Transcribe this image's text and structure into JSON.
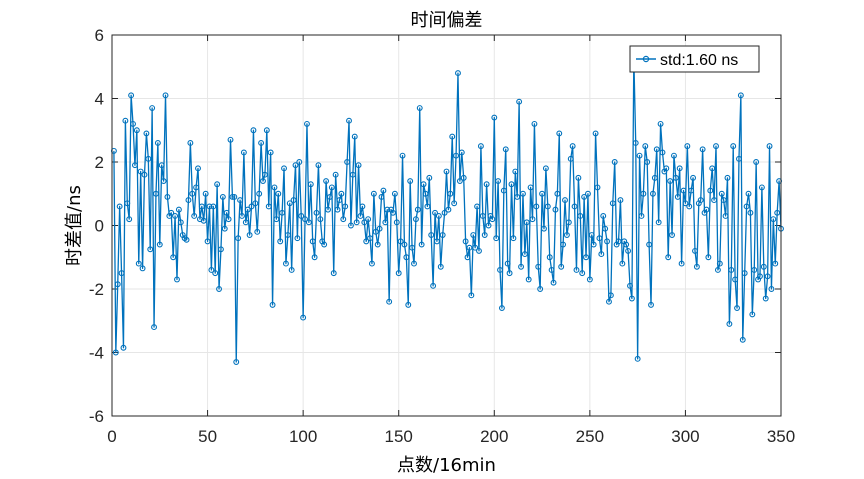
{
  "chart_data": {
    "type": "line",
    "title": "时间偏差",
    "xlabel": "点数/16min",
    "ylabel": "时差值/ns",
    "xlim": [
      0,
      350
    ],
    "ylim": [
      -6,
      6
    ],
    "xticks": [
      0,
      50,
      100,
      150,
      200,
      250,
      300,
      350
    ],
    "yticks": [
      -6,
      -4,
      -2,
      0,
      2,
      4,
      6
    ],
    "grid": true,
    "legend_position": "top-right",
    "series": [
      {
        "name": "std:1.60 ns",
        "color": "#0072BD",
        "marker": "circle",
        "values": [
          2.35,
          -4.0,
          -1.85,
          0.6,
          -1.5,
          -3.85,
          3.3,
          0.7,
          0.2,
          4.1,
          3.2,
          1.9,
          3.0,
          -1.2,
          1.7,
          -1.35,
          1.6,
          2.9,
          2.1,
          -0.75,
          3.7,
          -3.2,
          1.0,
          2.6,
          -0.6,
          1.9,
          1.4,
          4.1,
          0.9,
          0.3,
          0.4,
          -1.0,
          0.3,
          -1.7,
          0.5,
          0.1,
          -0.3,
          -0.4,
          -0.45,
          0.8,
          2.6,
          1.0,
          0.3,
          1.2,
          1.8,
          0.2,
          0.6,
          0.15,
          1.0,
          -0.5,
          0.6,
          -1.4,
          0.6,
          -1.5,
          1.3,
          -2.0,
          -0.75,
          0.9,
          -0.1,
          0.4,
          0.2,
          2.7,
          0.9,
          0.9,
          -4.3,
          -0.4,
          0.8,
          0.3,
          2.3,
          0.1,
          0.5,
          -0.3,
          0.6,
          3.0,
          0.7,
          -0.2,
          1.0,
          2.6,
          1.4,
          1.6,
          3.0,
          0.6,
          2.3,
          -2.5,
          1.2,
          0.2,
          1.0,
          -0.5,
          0.4,
          1.8,
          -1.2,
          -0.3,
          0.7,
          -1.4,
          0.8,
          1.9,
          -0.4,
          2.0,
          0.3,
          -2.9,
          0.2,
          3.2,
          0.1,
          1.3,
          -0.5,
          -1.0,
          0.4,
          1.9,
          0.2,
          -0.5,
          -0.6,
          1.4,
          0.5,
          0.9,
          1.2,
          -1.5,
          1.6,
          0.5,
          0.8,
          1.0,
          0.2,
          0.6,
          2.0,
          3.3,
          0.0,
          1.6,
          2.8,
          0.1,
          1.9,
          0.3,
          0.6,
          0.1,
          -0.5,
          0.2,
          -0.4,
          -1.2,
          1.0,
          -0.2,
          -0.6,
          -0.1,
          0.9,
          1.1,
          0.1,
          0.5,
          -2.4,
          0.5,
          0.4,
          1.0,
          0.1,
          -1.5,
          -0.5,
          2.2,
          -0.6,
          -1.0,
          -2.5,
          1.4,
          -0.7,
          -1.2,
          0.2,
          0.5,
          3.7,
          -0.6,
          1.3,
          1.0,
          0.6,
          1.5,
          -0.3,
          -1.9,
          0.4,
          -0.5,
          0.3,
          -1.3,
          -0.3,
          0.4,
          1.7,
          0.5,
          1.0,
          2.8,
          0.7,
          2.2,
          4.8,
          1.4,
          2.3,
          1.5,
          -0.5,
          -1.0,
          -0.7,
          -2.2,
          -0.3,
          -0.7,
          0.6,
          -0.8,
          2.5,
          0.3,
          -0.3,
          1.3,
          0.0,
          0.3,
          0.2,
          3.4,
          -0.4,
          1.4,
          -1.4,
          -2.6,
          1.1,
          2.4,
          -1.2,
          -1.5,
          1.3,
          -0.4,
          1.7,
          0.9,
          3.9,
          -1.3,
          1.0,
          -0.9,
          0.1,
          -1.7,
          1.2,
          0.2,
          3.2,
          0.6,
          -1.3,
          -2.0,
          1.0,
          -0.1,
          1.8,
          0.6,
          -1.0,
          -1.4,
          -1.8,
          0.5,
          1.0,
          2.9,
          -1.3,
          -0.6,
          0.8,
          -0.3,
          0.1,
          2.1,
          2.5,
          0.6,
          -1.4,
          1.5,
          0.3,
          -1.5,
          0.9,
          -1.0,
          1.0,
          -1.7,
          -0.3,
          -0.6,
          2.9,
          1.2,
          -0.4,
          -0.9,
          0.3,
          -0.1,
          -0.5,
          -2.4,
          -2.2,
          0.7,
          2.0,
          -0.6,
          -0.5,
          0.8,
          -1.2,
          -0.5,
          -0.6,
          -0.8,
          -1.9,
          -2.3,
          5.3,
          2.6,
          -4.2,
          2.2,
          0.3,
          1.0,
          2.5,
          2.0,
          -0.6,
          -2.5,
          1.0,
          1.5,
          2.4,
          0.1,
          3.2,
          2.3,
          1.7,
          1.8,
          -1.0,
          1.4,
          -0.3,
          2.2,
          1.5,
          0.9,
          1.8,
          -1.2,
          1.1,
          0.7,
          2.5,
          0.6,
          1.1,
          1.5,
          -0.8,
          -1.3,
          0.7,
          0.8,
          2.4,
          0.4,
          0.5,
          -1.0,
          1.1,
          1.8,
          0.8,
          2.5,
          -1.4,
          -1.2,
          1.0,
          0.8,
          0.3,
          1.5,
          -3.1,
          -1.4,
          2.5,
          -1.7,
          -2.6,
          2.1,
          4.1,
          -3.6,
          -1.5,
          0.6,
          1.0,
          0.4,
          -2.8,
          -1.4,
          2.0,
          -1.7,
          -1.6,
          1.2,
          -1.3,
          -2.3,
          -1.6,
          2.5,
          -2.0,
          0.2,
          -1.2,
          0.4,
          1.4,
          -0.1
        ]
      }
    ]
  }
}
